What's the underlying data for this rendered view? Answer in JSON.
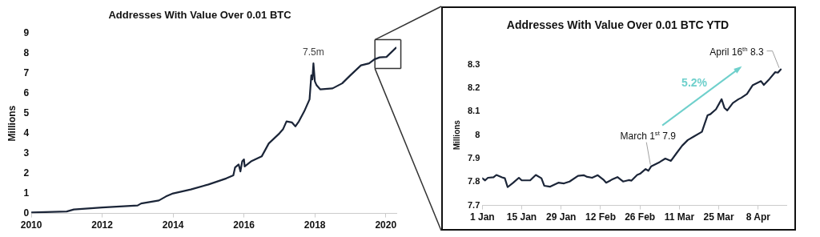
{
  "chart_data": [
    {
      "type": "line",
      "title": "Addresses With Value Over 0.01 BTC",
      "ylabel": "Millions",
      "x": [
        2010,
        2011,
        2011.2,
        2012,
        2013,
        2013.1,
        2013.6,
        2013.8,
        2014,
        2014.5,
        2015,
        2015.5,
        2015.7,
        2015.75,
        2015.85,
        2015.9,
        2015.95,
        2016,
        2016.02,
        2016.2,
        2016.5,
        2016.7,
        2017,
        2017.1,
        2017.2,
        2017.35,
        2017.45,
        2017.55,
        2017.7,
        2017.85,
        2017.9,
        2017.93,
        2017.96,
        2018,
        2018.05,
        2018.15,
        2018.5,
        2018.77,
        2019,
        2019.3,
        2019.53,
        2019.68,
        2019.83,
        2020.02,
        2020.29
      ],
      "series": [
        {
          "color": "#1b2538",
          "values": [
            0.05,
            0.1,
            0.2,
            0.3,
            0.4,
            0.5,
            0.65,
            0.85,
            1.0,
            1.2,
            1.45,
            1.75,
            1.9,
            2.3,
            2.45,
            2.1,
            2.6,
            2.7,
            2.35,
            2.6,
            2.85,
            3.5,
            4.0,
            4.2,
            4.6,
            4.55,
            4.35,
            4.6,
            5.1,
            5.7,
            6.9,
            6.7,
            7.5,
            6.6,
            6.4,
            6.2,
            6.25,
            6.5,
            6.9,
            7.4,
            7.5,
            7.7,
            7.8,
            7.82,
            8.28
          ]
        }
      ],
      "xlim": [
        2010,
        2020.3
      ],
      "xticks": [
        2010,
        2012,
        2014,
        2016,
        2018,
        2020
      ],
      "ylim": [
        0,
        9
      ],
      "yticks": [
        0,
        1,
        2,
        3,
        4,
        5,
        6,
        7,
        8,
        9
      ],
      "grid": false,
      "legend": false,
      "marker": "none",
      "line_style": "solid",
      "annotations": [
        {
          "text": "7.5m",
          "x": 2017.96,
          "y": 7.5
        }
      ]
    },
    {
      "type": "line",
      "title": "Addresses With Value Over 0.01 BTC YTD",
      "ylabel": "Millions",
      "x": [
        "--01-01",
        "--01-02",
        "--01-03",
        "--01-05",
        "--01-06",
        "--01-08",
        "--01-09",
        "--01-10",
        "--01-12",
        "--01-14",
        "--01-15",
        "--01-18",
        "--01-20",
        "--01-22",
        "--01-23",
        "--01-25",
        "--01-28",
        "--01-30",
        "--02-01",
        "--02-04",
        "--02-06",
        "--02-07",
        "--02-09",
        "--02-11",
        "--02-13",
        "--02-14",
        "--02-16",
        "--02-18",
        "--02-20",
        "--02-22",
        "--02-23",
        "--02-25",
        "--02-26",
        "--02-28",
        "--02-29",
        "--03-01",
        "--03-04",
        "--03-06",
        "--03-08",
        "--03-10",
        "--03-12",
        "--03-14",
        "--03-16",
        "--03-19",
        "--03-21",
        "--03-22",
        "--03-24",
        "--03-26",
        "--03-27",
        "--03-28",
        "--03-30",
        "--04-01",
        "--04-02",
        "--04-04",
        "--04-06",
        "--04-09",
        "--04-10",
        "--04-12",
        "--04-14",
        "--04-15",
        "--04-16"
      ],
      "series": [
        {
          "color": "#1b2538",
          "values": [
            7.816,
            7.807,
            7.818,
            7.82,
            7.83,
            7.82,
            7.816,
            7.778,
            7.797,
            7.818,
            7.807,
            7.807,
            7.83,
            7.816,
            7.784,
            7.78,
            7.797,
            7.794,
            7.802,
            7.826,
            7.829,
            7.823,
            7.818,
            7.829,
            7.81,
            7.797,
            7.81,
            7.821,
            7.802,
            7.808,
            7.806,
            7.83,
            7.835,
            7.855,
            7.848,
            7.867,
            7.885,
            7.9,
            7.89,
            7.923,
            7.955,
            7.979,
            7.993,
            8.014,
            8.084,
            8.089,
            8.11,
            8.153,
            8.116,
            8.105,
            8.137,
            8.153,
            8.159,
            8.175,
            8.212,
            8.23,
            8.214,
            8.239,
            8.268,
            8.266,
            8.28
          ]
        }
      ],
      "xlim": [
        "--01-01",
        "--04-18"
      ],
      "xticks": [
        {
          "value": "--01-01",
          "label": "1 Jan"
        },
        {
          "value": "--01-15",
          "label": "15 Jan"
        },
        {
          "value": "--01-29",
          "label": "29 Jan"
        },
        {
          "value": "--02-12",
          "label": "12 Feb"
        },
        {
          "value": "--02-26",
          "label": "26 Feb"
        },
        {
          "value": "--03-11",
          "label": "11 Mar"
        },
        {
          "value": "--03-25",
          "label": "25 Mar"
        },
        {
          "value": "--04-08",
          "label": "8 Apr"
        }
      ],
      "ylim": [
        7.7,
        8.3
      ],
      "yticks": [
        7.7,
        7.8,
        7.9,
        8,
        8.1,
        8.2,
        8.3
      ],
      "grid": false,
      "legend": false,
      "marker": "none",
      "line_style": "solid",
      "annotations": [
        {
          "text": "March 1$^{st}$ 7.9",
          "x": "--03-01",
          "y": 7.867
        },
        {
          "text": "April 16$^{th}$ 8.3",
          "x": "--04-16",
          "y": 8.28
        },
        {
          "text": "5.2%",
          "x": "--03-22",
          "y": 8.089
        }
      ]
    }
  ]
}
